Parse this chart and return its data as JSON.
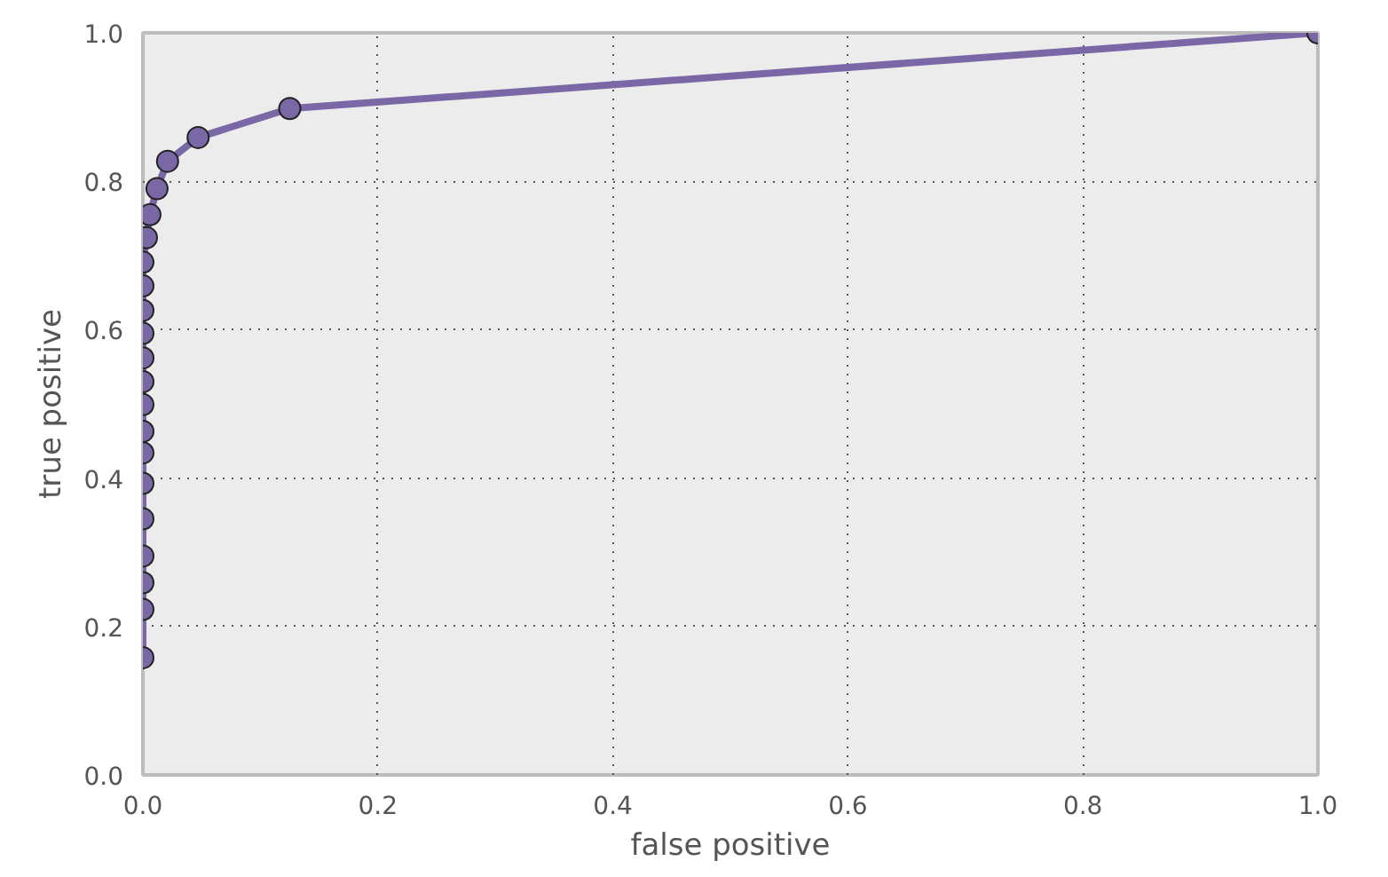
{
  "chart_data": {
    "type": "line",
    "xlabel": "false positive",
    "ylabel": "true positive",
    "x": [
      0,
      0,
      0,
      0,
      0,
      0,
      0,
      0,
      0,
      0,
      0,
      0,
      0,
      0,
      0,
      0.003,
      0.006,
      0.012,
      0.021,
      0.047,
      0.125,
      1.0
    ],
    "series": [
      {
        "color": "#7a68a6",
        "values": [
          0.158,
          0.223,
          0.259,
          0.295,
          0.345,
          0.393,
          0.434,
          0.463,
          0.499,
          0.53,
          0.562,
          0.595,
          0.626,
          0.659,
          0.691,
          0.724,
          0.755,
          0.79,
          0.827,
          0.859,
          0.898,
          1.0
        ]
      }
    ],
    "xlim": [
      0,
      1
    ],
    "ylim": [
      0,
      1
    ],
    "xticks": [
      {
        "value": 0,
        "label": "0.0"
      },
      0.2,
      0.4,
      0.6,
      0.8,
      {
        "value": 1,
        "label": "1.0"
      }
    ],
    "yticks": [
      {
        "value": 0,
        "label": "0.0"
      },
      0.2,
      0.4,
      0.6,
      0.8,
      {
        "value": 1,
        "label": "1.0"
      }
    ],
    "grid": true,
    "marker": "circle",
    "line_style": "solid"
  }
}
